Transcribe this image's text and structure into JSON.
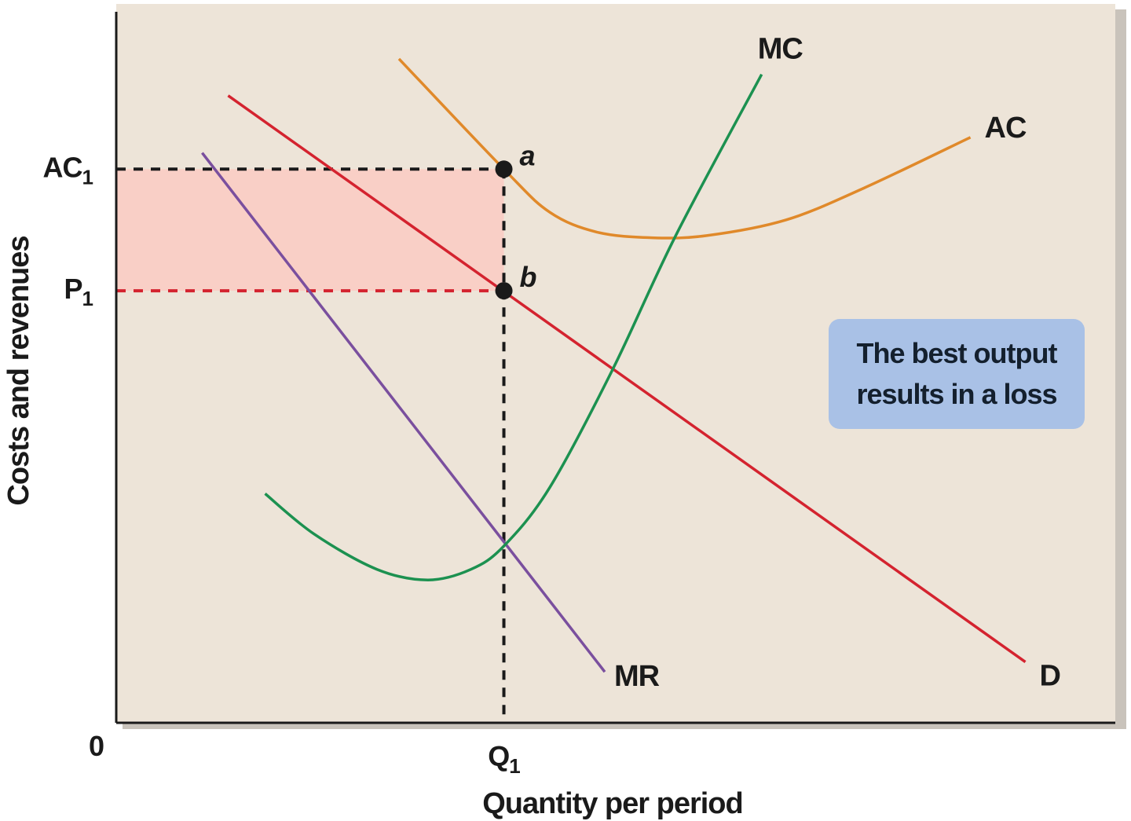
{
  "chart_data": {
    "type": "line",
    "title": "",
    "xlabel": "Quantity per period",
    "ylabel": "Costs and revenues",
    "xlim": [
      0,
      100
    ],
    "ylim": [
      0,
      100
    ],
    "grid": false,
    "origin_label": "0",
    "x_ticks": [
      {
        "label": "Q",
        "sub": "1",
        "value": 38.8
      }
    ],
    "y_ticks": [
      {
        "label": "AC",
        "sub": "1",
        "value": 78.3
      },
      {
        "label": "P",
        "sub": "1",
        "value": 61.1
      }
    ],
    "series": [
      {
        "name": "D",
        "color": "#d4232f",
        "points": [
          [
            11.2,
            88.7
          ],
          [
            91.0,
            8.6
          ]
        ]
      },
      {
        "name": "MR",
        "color": "#7a4f9e",
        "points": [
          [
            8.6,
            80.6
          ],
          [
            48.9,
            7.2
          ]
        ]
      },
      {
        "name": "AC",
        "color": "#e0892a",
        "points": [
          [
            28.3,
            93.9
          ],
          [
            38.8,
            78.3
          ],
          [
            43.4,
            72.2
          ],
          [
            48.1,
            69.4
          ],
          [
            53.6,
            68.6
          ],
          [
            59.1,
            68.9
          ],
          [
            67.0,
            71.1
          ],
          [
            74.8,
            75.6
          ],
          [
            85.5,
            82.8
          ]
        ]
      },
      {
        "name": "MC",
        "color": "#1c9150",
        "points": [
          [
            14.9,
            32.4
          ],
          [
            19.8,
            26.7
          ],
          [
            26.1,
            21.7
          ],
          [
            31.2,
            20.2
          ],
          [
            35.5,
            21.7
          ],
          [
            38.8,
            25.0
          ],
          [
            43.4,
            33.3
          ],
          [
            49.7,
            50.0
          ],
          [
            56.0,
            68.9
          ],
          [
            64.6,
            91.7
          ]
        ]
      }
    ],
    "points": [
      {
        "label": "a",
        "x": 38.8,
        "y": 78.3
      },
      {
        "label": "b",
        "x": 38.8,
        "y": 61.1
      }
    ],
    "loss_area": {
      "x": [
        0,
        38.8
      ],
      "y": [
        61.1,
        78.3
      ],
      "color": "#f9cfc6"
    },
    "annotation": "The best output results in a loss",
    "colors": {
      "background": "#ede4d8",
      "annotation_box": "#a9c1e6",
      "p1_guide": "#d4232f",
      "ac1_guide": "#1a1a1a"
    }
  }
}
